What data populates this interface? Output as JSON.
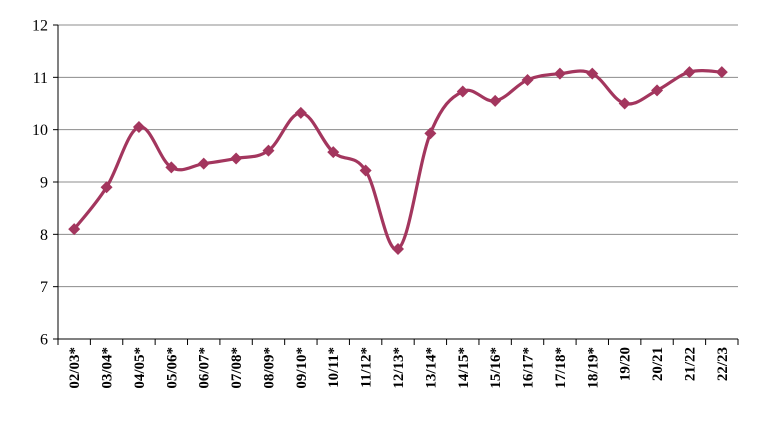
{
  "chart_data": {
    "type": "line",
    "categories": [
      "02/03*",
      "03/04*",
      "04/05*",
      "05/06*",
      "06/07*",
      "07/08*",
      "08/09*",
      "09/10*",
      "10/11*",
      "11/12*",
      "12/13*",
      "13/14*",
      "14/15*",
      "15/16*",
      "16/17*",
      "17/18*",
      "18/19*",
      "19/20",
      "20/21",
      "21/22",
      "22/23"
    ],
    "series": [
      {
        "values": [
          8.1,
          8.9,
          10.05,
          9.28,
          9.35,
          9.45,
          9.6,
          10.32,
          9.57,
          9.22,
          7.72,
          9.93,
          10.73,
          10.55,
          10.95,
          11.07,
          11.07,
          10.5,
          10.75,
          11.1,
          11.1
        ]
      }
    ],
    "ylim": [
      6,
      12
    ],
    "yticks": [
      "6",
      "7",
      "8",
      "9",
      "10",
      "11",
      "12"
    ],
    "grid": true,
    "title": "",
    "xlabel": "",
    "ylabel": "",
    "line_color": "#a3365e"
  }
}
